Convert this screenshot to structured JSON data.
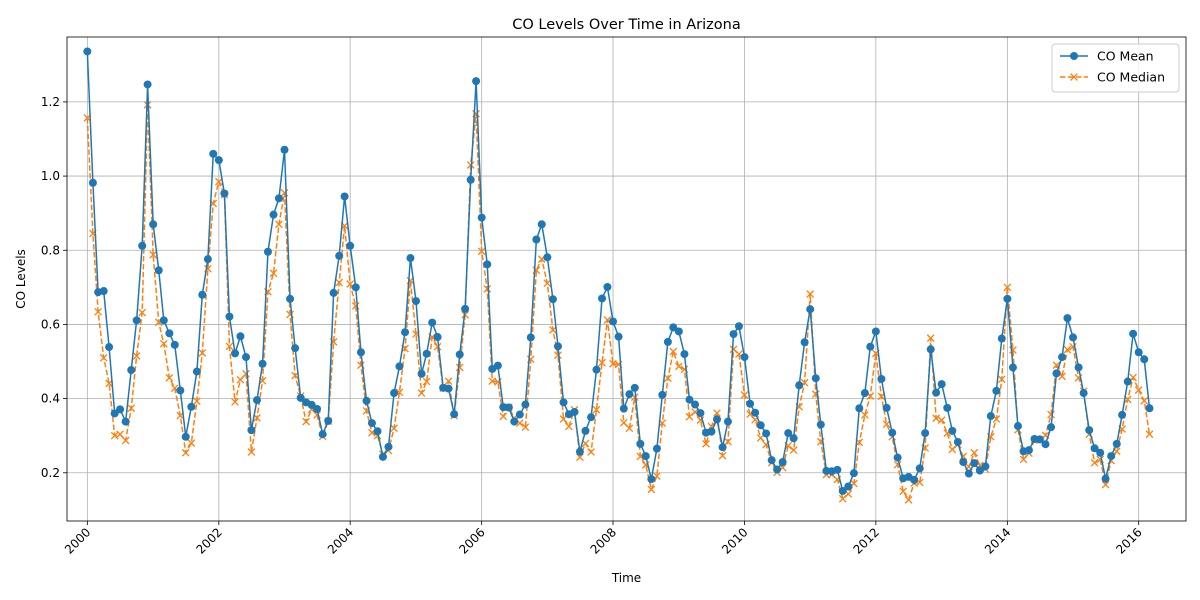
{
  "chart_data": {
    "type": "line",
    "title": "CO Levels Over Time in Arizona",
    "xlabel": "Time",
    "ylabel": "CO Levels",
    "xlim": [
      "1999-09-10",
      "2016-09-20"
    ],
    "ylim": [
      0.07,
      1.375
    ],
    "x_ticks": [
      "2000",
      "2002",
      "2004",
      "2006",
      "2008",
      "2010",
      "2012",
      "2014",
      "2016"
    ],
    "y_ticks": [
      "0.2",
      "0.4",
      "0.6",
      "0.8",
      "1.0",
      "1.2"
    ],
    "grid": true,
    "legend_position": "top-right",
    "x_start_month": "2000-01",
    "x_step": "month",
    "series": [
      {
        "name": "CO Mean",
        "color": "#1f77b4",
        "marker": "circle",
        "line_style": "solid",
        "values": [
          1.336,
          0.982,
          0.687,
          0.69,
          0.539,
          0.36,
          0.371,
          0.338,
          0.477,
          0.611,
          0.812,
          1.247,
          0.87,
          0.746,
          0.611,
          0.576,
          0.545,
          0.422,
          0.297,
          0.378,
          0.473,
          0.68,
          0.776,
          1.06,
          1.043,
          0.953,
          0.621,
          0.522,
          0.568,
          0.512,
          0.315,
          0.396,
          0.494,
          0.796,
          0.896,
          0.94,
          1.071,
          0.669,
          0.536,
          0.402,
          0.39,
          0.383,
          0.372,
          0.304,
          0.34,
          0.685,
          0.785,
          0.945,
          0.812,
          0.7,
          0.525,
          0.394,
          0.334,
          0.312,
          0.243,
          0.27,
          0.415,
          0.487,
          0.579,
          0.779,
          0.663,
          0.467,
          0.521,
          0.605,
          0.566,
          0.429,
          0.427,
          0.358,
          0.519,
          0.642,
          0.99,
          1.256,
          0.888,
          0.762,
          0.48,
          0.489,
          0.377,
          0.376,
          0.338,
          0.357,
          0.384,
          0.565,
          0.829,
          0.87,
          0.781,
          0.668,
          0.541,
          0.39,
          0.358,
          0.364,
          0.257,
          0.313,
          0.35,
          0.478,
          0.67,
          0.701,
          0.608,
          0.567,
          0.373,
          0.412,
          0.429,
          0.278,
          0.245,
          0.183,
          0.265,
          0.41,
          0.553,
          0.592,
          0.581,
          0.52,
          0.397,
          0.384,
          0.361,
          0.308,
          0.311,
          0.344,
          0.269,
          0.338,
          0.574,
          0.595,
          0.512,
          0.386,
          0.362,
          0.328,
          0.306,
          0.234,
          0.209,
          0.229,
          0.307,
          0.293,
          0.436,
          0.552,
          0.641,
          0.455,
          0.33,
          0.205,
          0.204,
          0.208,
          0.151,
          0.163,
          0.199,
          0.374,
          0.415,
          0.54,
          0.581,
          0.453,
          0.375,
          0.308,
          0.241,
          0.185,
          0.189,
          0.181,
          0.212,
          0.307,
          0.533,
          0.416,
          0.439,
          0.375,
          0.313,
          0.283,
          0.229,
          0.198,
          0.226,
          0.206,
          0.217,
          0.353,
          0.421,
          0.562,
          0.669,
          0.484,
          0.326,
          0.258,
          0.261,
          0.291,
          0.29,
          0.277,
          0.323,
          0.468,
          0.512,
          0.617,
          0.565,
          0.484,
          0.415,
          0.315,
          0.266,
          0.254,
          0.184,
          0.245,
          0.278,
          0.356,
          0.446,
          0.575,
          0.525,
          0.506,
          0.374
        ]
      },
      {
        "name": "CO Median",
        "color": "#ff7f0e",
        "marker": "x",
        "line_style": "dashed",
        "values": [
          1.157,
          0.845,
          0.634,
          0.51,
          0.441,
          0.3,
          0.304,
          0.287,
          0.374,
          0.515,
          0.632,
          1.192,
          0.788,
          0.606,
          0.548,
          0.456,
          0.428,
          0.354,
          0.254,
          0.28,
          0.393,
          0.523,
          0.75,
          0.926,
          0.985,
          0.95,
          0.541,
          0.391,
          0.451,
          0.467,
          0.256,
          0.348,
          0.448,
          0.688,
          0.738,
          0.87,
          0.955,
          0.627,
          0.462,
          0.407,
          0.338,
          0.371,
          0.356,
          0.298,
          0.339,
          0.553,
          0.713,
          0.866,
          0.709,
          0.65,
          0.49,
          0.367,
          0.308,
          0.3,
          0.25,
          0.26,
          0.32,
          0.417,
          0.535,
          0.718,
          0.574,
          0.415,
          0.446,
          0.566,
          0.54,
          0.428,
          0.447,
          0.354,
          0.484,
          0.626,
          1.03,
          1.168,
          0.797,
          0.696,
          0.447,
          0.445,
          0.352,
          0.377,
          0.348,
          0.334,
          0.323,
          0.506,
          0.746,
          0.776,
          0.711,
          0.585,
          0.517,
          0.345,
          0.325,
          0.37,
          0.242,
          0.279,
          0.256,
          0.37,
          0.497,
          0.612,
          0.494,
          0.492,
          0.335,
          0.32,
          0.404,
          0.244,
          0.221,
          0.155,
          0.191,
          0.334,
          0.455,
          0.527,
          0.487,
          0.479,
          0.351,
          0.364,
          0.342,
          0.278,
          0.325,
          0.361,
          0.246,
          0.284,
          0.533,
          0.52,
          0.41,
          0.358,
          0.343,
          0.294,
          0.276,
          0.227,
          0.201,
          0.214,
          0.273,
          0.261,
          0.378,
          0.443,
          0.682,
          0.412,
          0.284,
          0.195,
          0.195,
          0.182,
          0.13,
          0.143,
          0.171,
          0.282,
          0.356,
          0.407,
          0.522,
          0.406,
          0.331,
          0.297,
          0.222,
          0.15,
          0.127,
          0.172,
          0.174,
          0.267,
          0.563,
          0.347,
          0.342,
          0.307,
          0.263,
          0.276,
          0.244,
          0.216,
          0.254,
          0.22,
          0.21,
          0.297,
          0.345,
          0.452,
          0.7,
          0.531,
          0.316,
          0.236,
          0.253,
          0.289,
          0.288,
          0.301,
          0.357,
          0.49,
          0.46,
          0.532,
          0.54,
          0.456,
          0.42,
          0.304,
          0.227,
          0.236,
          0.168,
          0.233,
          0.258,
          0.318,
          0.398,
          0.457,
          0.423,
          0.394,
          0.304
        ]
      }
    ]
  }
}
